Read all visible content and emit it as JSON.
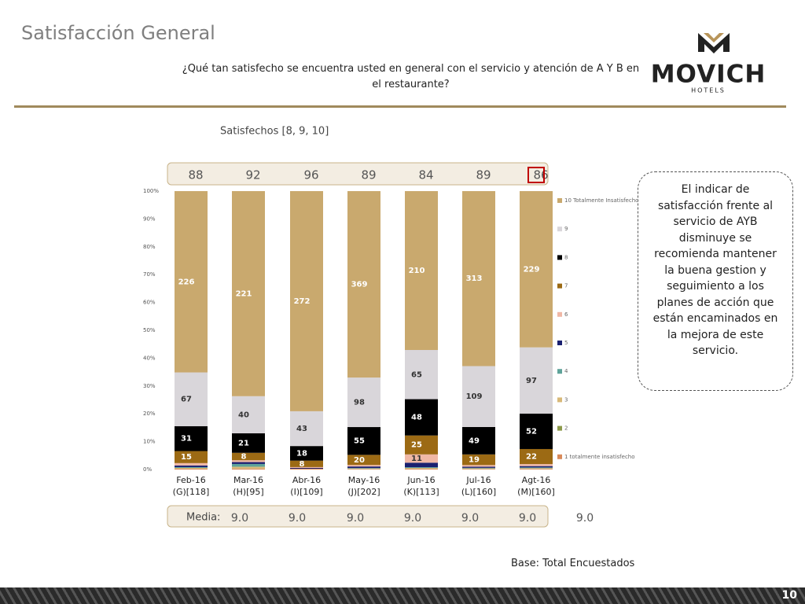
{
  "header": {
    "title": "Satisfacción General",
    "question": "¿Qué tan satisfecho se encuentra usted en general con el servicio y atención de A Y B en el restaurante?",
    "brand": "MOVICH",
    "brand_sub": "HOTELS"
  },
  "chart_data": {
    "type": "bar",
    "stacking": "percent",
    "subtitle": "Satisfechos [8, 9, 10]",
    "categories": [
      "Feb-16",
      "Mar-16",
      "Abr-16",
      "May-16",
      "Jun-16",
      "Jul-16",
      "Agt-16"
    ],
    "bases": [
      "(G)[118]",
      "(H)[95]",
      "(I)[109]",
      "(J)[202]",
      "(K)[113]",
      "(L)[160]",
      "(M)[160]"
    ],
    "satisfied": [
      88,
      92,
      96,
      89,
      84,
      89,
      86
    ],
    "mean_label": "Media:",
    "mean": [
      9,
      9,
      9,
      9,
      9,
      9,
      9
    ],
    "mean_labels": [
      "9.0",
      "9.0",
      "9.0",
      "9.0",
      "9.0",
      "9.0",
      "9.0"
    ],
    "ylim": [
      0,
      100
    ],
    "yticks": [
      {
        "value": 0,
        "label": "0%"
      },
      {
        "value": 10,
        "label": "10%"
      },
      {
        "value": 20,
        "label": "20%"
      },
      {
        "value": 30,
        "label": "30%"
      },
      {
        "value": 40,
        "label": "40%"
      },
      {
        "value": 50,
        "label": "50%"
      },
      {
        "value": 60,
        "label": "60%"
      },
      {
        "value": 70,
        "label": "70%"
      },
      {
        "value": 80,
        "label": "80%"
      },
      {
        "value": 90,
        "label": "90%"
      },
      {
        "value": 100,
        "label": "100%"
      }
    ],
    "series": [
      {
        "name": "1 totalmente insatisfecho",
        "color": "#d98a5a",
        "values": [
          1,
          1,
          1,
          1,
          1,
          1,
          1
        ]
      },
      {
        "name": "2",
        "color": "#8c9a4a",
        "values": [
          0,
          0,
          0,
          0,
          0,
          0,
          0
        ]
      },
      {
        "name": "3",
        "color": "#d8b978",
        "values": [
          1,
          2,
          0,
          1,
          1,
          1,
          1
        ]
      },
      {
        "name": "4",
        "color": "#5fa39a",
        "values": [
          1,
          3,
          0,
          1,
          1,
          1,
          1
        ]
      },
      {
        "name": "5",
        "color": "#1a2070",
        "values": [
          2,
          2,
          1,
          3,
          6,
          2,
          2
        ]
      },
      {
        "name": "6",
        "color": "#f0b8a6",
        "values": [
          3,
          2,
          1,
          3,
          11,
          3,
          3
        ]
      },
      {
        "name": "7",
        "color": "#9c6a14",
        "values": [
          15,
          8,
          8,
          20,
          25,
          19,
          22
        ]
      },
      {
        "name": "8",
        "color": "#000000",
        "values": [
          31,
          21,
          18,
          55,
          48,
          49,
          52
        ]
      },
      {
        "name": "9",
        "color": "#d9d6da",
        "values": [
          67,
          40,
          43,
          98,
          65,
          109,
          97
        ]
      },
      {
        "name": "10 Totalmente Insatisfecho",
        "color": "#c9a96e",
        "values": [
          226,
          221,
          272,
          369,
          210,
          313,
          229
        ]
      }
    ]
  },
  "note": "El indicar de satisfacción frente al servicio de AYB disminuye se recomienda mantener la buena gestion y seguimiento a los planes de acción que están encaminados en la mejora de este servicio.",
  "base": "Base: Total Encuestados",
  "page_number": "10"
}
